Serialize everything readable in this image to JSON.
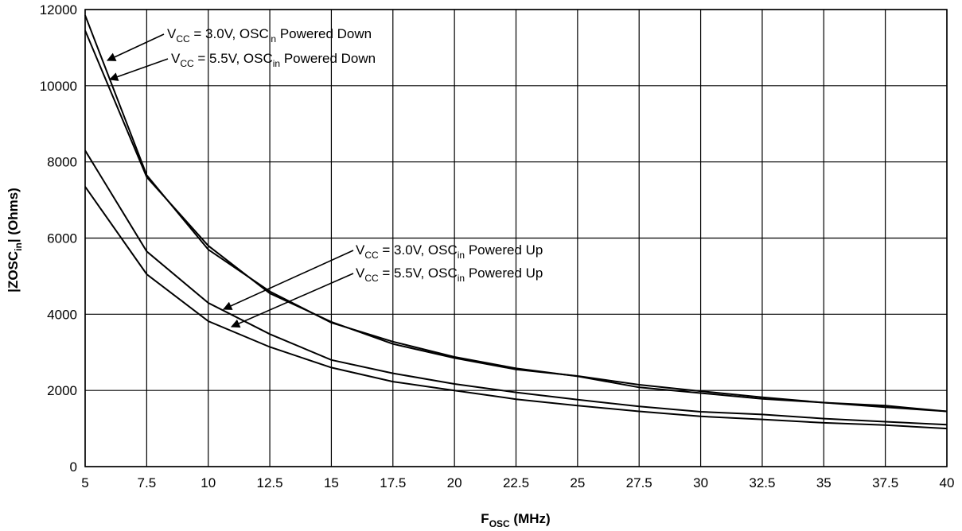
{
  "chart_data": {
    "type": "line",
    "xlabel": {
      "main": "F",
      "sub": "OSC",
      "rest": " (MHz)"
    },
    "ylabel": {
      "main": "|ZOSC",
      "sub": "in",
      "rest": "| (Ohms)"
    },
    "xlim": [
      5,
      40
    ],
    "ylim": [
      0,
      12000
    ],
    "grid": true,
    "x_ticks": [
      "5",
      "7.5",
      "10",
      "12.5",
      "15",
      "17.5",
      "20",
      "22.5",
      "25",
      "27.5",
      "30",
      "32.5",
      "35",
      "37.5",
      "40"
    ],
    "y_ticks": [
      "0",
      "2000",
      "4000",
      "6000",
      "8000",
      "10000",
      "12000"
    ],
    "x": [
      5,
      7.5,
      10,
      12.5,
      15,
      17.5,
      20,
      22.5,
      25,
      27.5,
      30,
      32.5,
      35,
      37.5,
      40
    ],
    "series": [
      {
        "name": "VCC = 3.0V, OSCin Powered Down",
        "label_parts": {
          "v": "V",
          "vsub": "CC",
          "mid": " = 3.0V, OSC",
          "osub": "in",
          "end": " Powered Down"
        },
        "values": [
          11850,
          7650,
          5700,
          4600,
          3780,
          3280,
          2880,
          2580,
          2370,
          2080,
          1930,
          1780,
          1680,
          1560,
          1450
        ]
      },
      {
        "name": "VCC = 5.5V, OSCin Powered Down",
        "label_parts": {
          "v": "V",
          "vsub": "CC",
          "mid": " = 5.5V, OSC",
          "osub": "in",
          "end": " Powered Down"
        },
        "values": [
          11450,
          7600,
          5800,
          4550,
          3800,
          3220,
          2850,
          2550,
          2380,
          2150,
          1980,
          1820,
          1680,
          1600,
          1450
        ]
      },
      {
        "name": "VCC = 3.0V, OSCin Powered Up",
        "label_parts": {
          "v": "V",
          "vsub": "CC",
          "mid": " = 3.0V, OSC",
          "osub": "in",
          "end": " Powered Up"
        },
        "values": [
          8300,
          5650,
          4300,
          3480,
          2800,
          2450,
          2170,
          1950,
          1760,
          1580,
          1440,
          1370,
          1260,
          1180,
          1100
        ]
      },
      {
        "name": "VCC = 5.5V, OSCin Powered Up",
        "label_parts": {
          "v": "V",
          "vsub": "CC",
          "mid": " = 5.5V, OSC",
          "osub": "in",
          "end": " Powered Up"
        },
        "values": [
          7350,
          5050,
          3820,
          3140,
          2600,
          2230,
          2000,
          1770,
          1600,
          1450,
          1320,
          1240,
          1150,
          1090,
          1000
        ]
      }
    ]
  }
}
